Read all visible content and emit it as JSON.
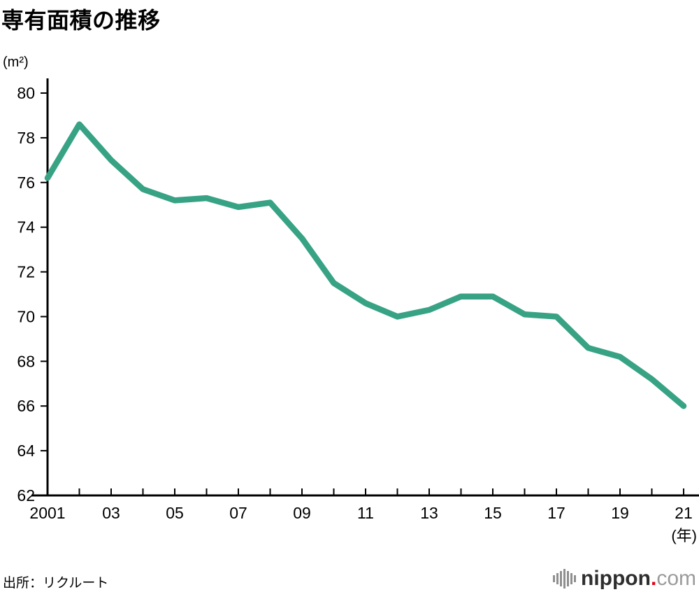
{
  "chart_data": {
    "type": "line",
    "title": "専有面積の推移",
    "ylabel": "(m²)",
    "xlabel": "(年)",
    "x": [
      2001,
      2002,
      2003,
      2004,
      2005,
      2006,
      2007,
      2008,
      2009,
      2010,
      2011,
      2012,
      2013,
      2014,
      2015,
      2016,
      2017,
      2018,
      2019,
      2020,
      2021
    ],
    "values": [
      76.2,
      78.6,
      77.0,
      75.7,
      75.2,
      75.3,
      74.9,
      75.1,
      73.5,
      71.5,
      70.6,
      70.0,
      70.3,
      70.9,
      70.9,
      70.1,
      70.0,
      68.6,
      68.2,
      67.2,
      66.0
    ],
    "xlim": [
      2001,
      2021
    ],
    "ylim": [
      62,
      80
    ],
    "y_ticks": [
      62,
      64,
      66,
      68,
      70,
      72,
      74,
      76,
      78,
      80
    ],
    "x_ticks": [
      {
        "year": 2001,
        "label": "2001"
      },
      {
        "year": 2003,
        "label": "03"
      },
      {
        "year": 2005,
        "label": "05"
      },
      {
        "year": 2007,
        "label": "07"
      },
      {
        "year": 2009,
        "label": "09"
      },
      {
        "year": 2011,
        "label": "11"
      },
      {
        "year": 2013,
        "label": "13"
      },
      {
        "year": 2015,
        "label": "15"
      },
      {
        "year": 2017,
        "label": "17"
      },
      {
        "year": 2019,
        "label": "19"
      },
      {
        "year": 2021,
        "label": "21"
      }
    ],
    "line_color": "#38a384",
    "axis_color": "#000000",
    "grid": false,
    "legend": "none"
  },
  "footer": {
    "source": "出所：リクルート",
    "logo": {
      "brand": "nippon",
      "dot": ".",
      "tld": "com"
    }
  }
}
